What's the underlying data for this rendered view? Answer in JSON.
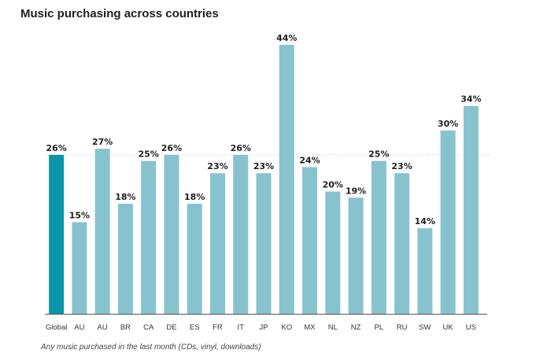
{
  "header": {
    "title": "Music purchasing across countries"
  },
  "footnote": "Any music purchased in the last month (CDs, vinyl, downloads)",
  "colors": {
    "highlight": "#0a95a8",
    "bar": "#87c3ce",
    "reference_line": "#cccccc",
    "axis": "#555555"
  },
  "chart_data": {
    "type": "bar",
    "title": "Music purchasing across countries",
    "xlabel": "",
    "ylabel": "",
    "categories": [
      "Global",
      "AU",
      "AU",
      "BR",
      "CA",
      "DE",
      "ES",
      "FR",
      "IT",
      "JP",
      "KO",
      "MX",
      "NL",
      "NZ",
      "PL",
      "RU",
      "SW",
      "UK",
      "US"
    ],
    "values": [
      26,
      15,
      27,
      18,
      25,
      26,
      18,
      23,
      26,
      23,
      44,
      24,
      20,
      19,
      25,
      23,
      14,
      30,
      34
    ],
    "value_labels": [
      "26%",
      "15%",
      "27%",
      "18%",
      "25%",
      "26%",
      "18%",
      "23%",
      "26%",
      "23%",
      "44%",
      "24%",
      "20%",
      "19%",
      "25%",
      "23%",
      "14%",
      "30%",
      "34%"
    ],
    "highlight_category": "Global",
    "reference_line": 26,
    "ylim": [
      0,
      44
    ],
    "grid": false,
    "legend": "none"
  }
}
